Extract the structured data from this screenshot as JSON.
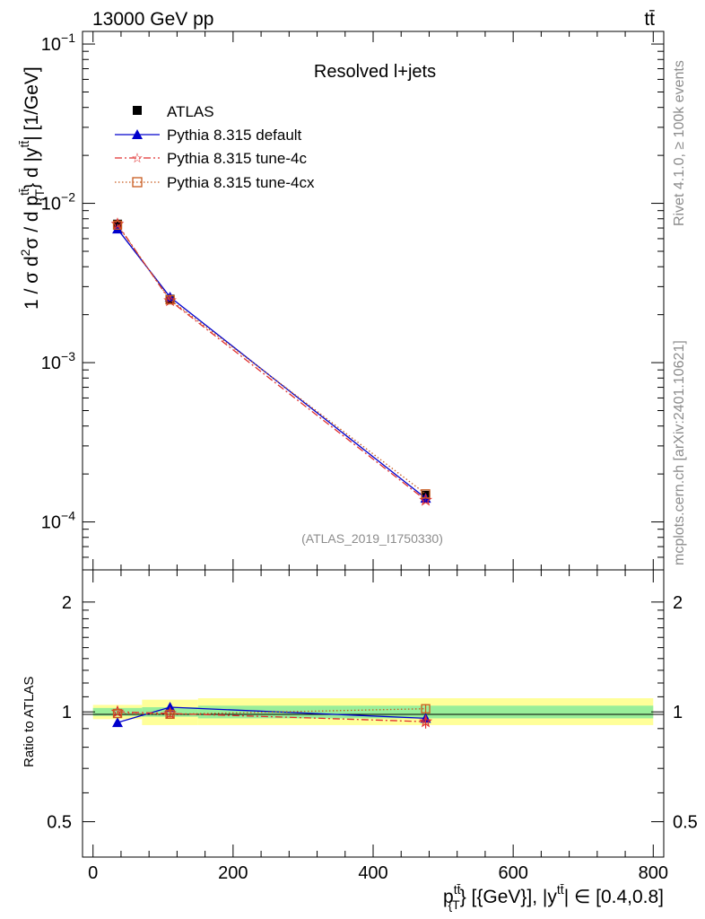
{
  "header": {
    "beam": "13000 GeV pp",
    "process": "tt̄"
  },
  "side_labels": {
    "rivet": "Rivet 4.1.0, ≥ 100k events",
    "mcplots": "mcplots.cern.ch [arXiv:2401.10621]"
  },
  "chart_data": [
    {
      "type": "line",
      "panel": "main",
      "title": "Resolved l+jets",
      "analysis_tag": "(ATLAS_2019_I1750330)",
      "ylabel": "1 / σ d²σ / d p_T^{tt̄} d |y^{tt̄}| [1/GeV]",
      "yscale": "log",
      "ylim": [
        5e-05,
        0.12
      ],
      "xlim": [
        -15,
        815
      ],
      "y_ticks": [
        {
          "value": 0.1,
          "label": "10",
          "exp": "−1"
        },
        {
          "value": 0.01,
          "label": "10",
          "exp": "−2"
        },
        {
          "value": 0.001,
          "label": "10",
          "exp": "−3"
        },
        {
          "value": 0.0001,
          "label": "10",
          "exp": "−4"
        }
      ],
      "legend_position": "top-left",
      "legend": [
        {
          "name": "ATLAS",
          "color": "#000000",
          "marker": "square-filled",
          "line": "none"
        },
        {
          "name": "Pythia 8.315 default",
          "color": "#0000cc",
          "marker": "triangle",
          "line": "solid"
        },
        {
          "name": "Pythia 8.315 tune-4c",
          "color": "#e03030",
          "marker": "star",
          "line": "dashdot"
        },
        {
          "name": "Pythia 8.315 tune-4cx",
          "color": "#c85a1e",
          "marker": "square-open",
          "line": "dotted"
        }
      ],
      "series": [
        {
          "name": "ATLAS",
          "x": [
            35,
            110,
            475
          ],
          "y": [
            0.0074,
            0.0025,
            0.000147
          ],
          "xerr": [
            35,
            40,
            325
          ],
          "yerr": [
            0.0002,
            7e-05,
            6e-06
          ]
        },
        {
          "name": "Pythia 8.315 default",
          "x": [
            35,
            110,
            475
          ],
          "y": [
            0.0069,
            0.00258,
            0.000141
          ]
        },
        {
          "name": "Pythia 8.315 tune-4c",
          "x": [
            35,
            110,
            475
          ],
          "y": [
            0.0074,
            0.00245,
            0.000137
          ]
        },
        {
          "name": "Pythia 8.315 tune-4cx",
          "x": [
            35,
            110,
            475
          ],
          "y": [
            0.0073,
            0.00248,
            0.00015
          ]
        }
      ]
    },
    {
      "type": "line",
      "panel": "ratio",
      "ylabel": "Ratio to ATLAS",
      "xlabel": "p_T^{tt̄} [{GeV}], |y^{tt̄}| ∈ [0.4,0.8]",
      "yscale": "log",
      "ylim": [
        0.4,
        2.45
      ],
      "xlim": [
        -15,
        815
      ],
      "x_ticks": [
        0,
        200,
        400,
        600,
        800
      ],
      "y_ticks": [
        0.5,
        1,
        2
      ],
      "bands": [
        {
          "x_range": [
            0,
            70
          ],
          "stat": [
            0.975,
            1.025
          ],
          "total": [
            0.955,
            1.045
          ]
        },
        {
          "x_range": [
            70,
            150
          ],
          "stat": [
            0.97,
            1.03
          ],
          "total": [
            0.92,
            1.08
          ]
        },
        {
          "x_range": [
            150,
            800
          ],
          "stat": [
            0.96,
            1.04
          ],
          "total": [
            0.92,
            1.09
          ]
        }
      ],
      "series": [
        {
          "name": "Pythia 8.315 default",
          "x": [
            35,
            110,
            475
          ],
          "y": [
            0.935,
            1.03,
            0.96
          ]
        },
        {
          "name": "Pythia 8.315 tune-4c",
          "x": [
            35,
            110,
            475
          ],
          "y": [
            1.0,
            0.99,
            0.94
          ],
          "yerr": [
            0.01,
            0.03,
            0.04
          ]
        },
        {
          "name": "Pythia 8.315 tune-4cx",
          "x": [
            35,
            110,
            475
          ],
          "y": [
            0.99,
            0.985,
            1.02
          ],
          "yerr": [
            0.01,
            0.02,
            0.03
          ]
        }
      ]
    }
  ]
}
